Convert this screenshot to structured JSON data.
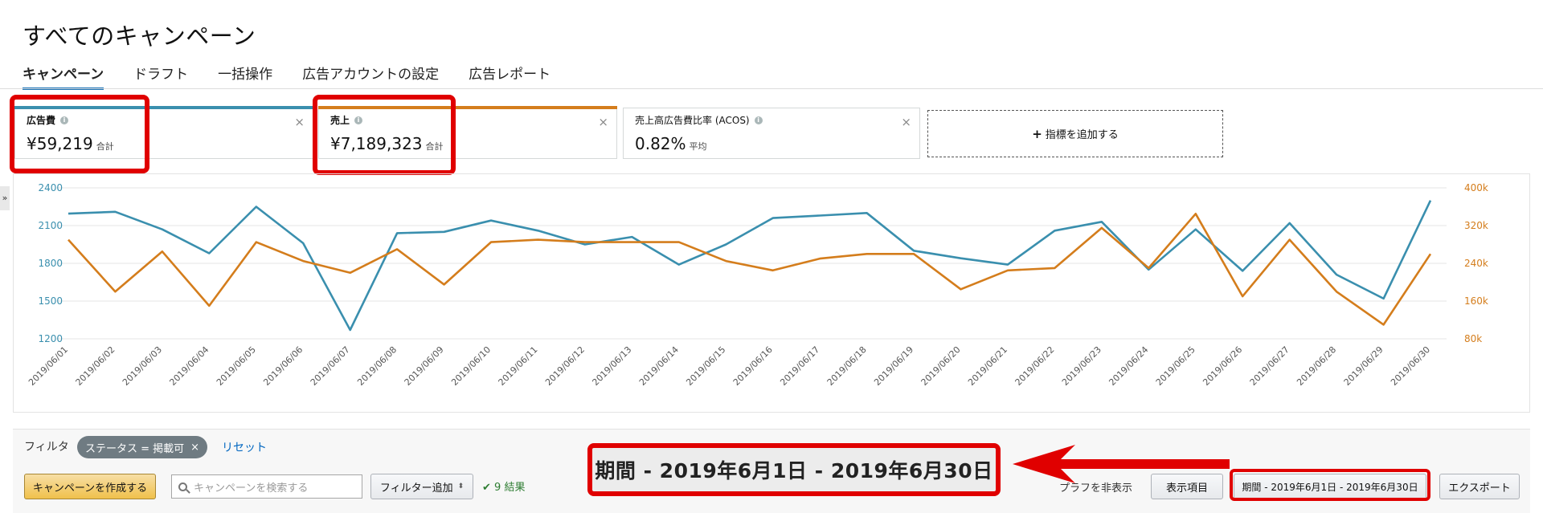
{
  "page": {
    "title": "すべてのキャンペーン"
  },
  "tabs": [
    {
      "label": "キャンペーン",
      "active": true
    },
    {
      "label": "ドラフト"
    },
    {
      "label": "一括操作"
    },
    {
      "label": "広告アカウントの設定"
    },
    {
      "label": "広告レポート"
    }
  ],
  "metrics": [
    {
      "label": "広告費",
      "value": "¥59,219",
      "unit": "合計",
      "color": "#3a8fae"
    },
    {
      "label": "売上",
      "value": "¥7,189,323",
      "unit": "合計",
      "color": "#d47d1c"
    },
    {
      "label": "売上高広告費比率 (ACOS)",
      "value": "0.82%",
      "unit": "平均"
    }
  ],
  "add_metric": {
    "label": "指標を追加する"
  },
  "chart_data": {
    "type": "line",
    "x": [
      "2019/06/01",
      "2019/06/02",
      "2019/06/03",
      "2019/06/04",
      "2019/06/05",
      "2019/06/06",
      "2019/06/07",
      "2019/06/08",
      "2019/06/09",
      "2019/06/10",
      "2019/06/11",
      "2019/06/12",
      "2019/06/13",
      "2019/06/14",
      "2019/06/15",
      "2019/06/16",
      "2019/06/17",
      "2019/06/18",
      "2019/06/19",
      "2019/06/20",
      "2019/06/21",
      "2019/06/22",
      "2019/06/23",
      "2019/06/24",
      "2019/06/25",
      "2019/06/26",
      "2019/06/27",
      "2019/06/28",
      "2019/06/29",
      "2019/06/30"
    ],
    "series": [
      {
        "color": "#3a8fae",
        "axis": "left",
        "values": [
          2195,
          2210,
          2070,
          1880,
          2250,
          1960,
          1270,
          2040,
          2050,
          2140,
          2060,
          1950,
          2010,
          1790,
          1950,
          2160,
          2180,
          2200,
          1900,
          1840,
          1790,
          2060,
          2130,
          1750,
          2070,
          1740,
          2120,
          1710,
          1520,
          2300
        ]
      },
      {
        "color": "#d47d1c",
        "axis": "right",
        "values": [
          290000,
          180000,
          265000,
          150000,
          285000,
          245000,
          220000,
          270000,
          195000,
          285000,
          290000,
          285000,
          285000,
          285000,
          245000,
          225000,
          250000,
          260000,
          260000,
          185000,
          225000,
          230000,
          315000,
          230000,
          345000,
          170000,
          290000,
          180000,
          110000,
          260000
        ]
      }
    ],
    "y_left": {
      "ticks": [
        "2400",
        "2100",
        "1800",
        "1500",
        "1200"
      ],
      "range": [
        1200,
        2400
      ]
    },
    "y_right": {
      "ticks": [
        "400k",
        "320k",
        "240k",
        "160k",
        "80k"
      ],
      "range": [
        80000,
        400000
      ]
    },
    "grid": true
  },
  "filter": {
    "label": "フィルタ",
    "chip": "ステータス = 掲載可",
    "reset": "リセット"
  },
  "toolbar": {
    "create": "キャンペーンを作成する",
    "search_placeholder": "キャンペーンを検索する",
    "add_filter": "フィルター追加",
    "results": "9 結果",
    "partial_text": "プラフを非表示",
    "columns": "表示項目",
    "date_range": "期間 - 2019年6月1日 - 2019年6月30日",
    "export": "エクスポート"
  },
  "annotation": {
    "callout": "期間 - 2019年6月1日 - 2019年6月30日"
  }
}
